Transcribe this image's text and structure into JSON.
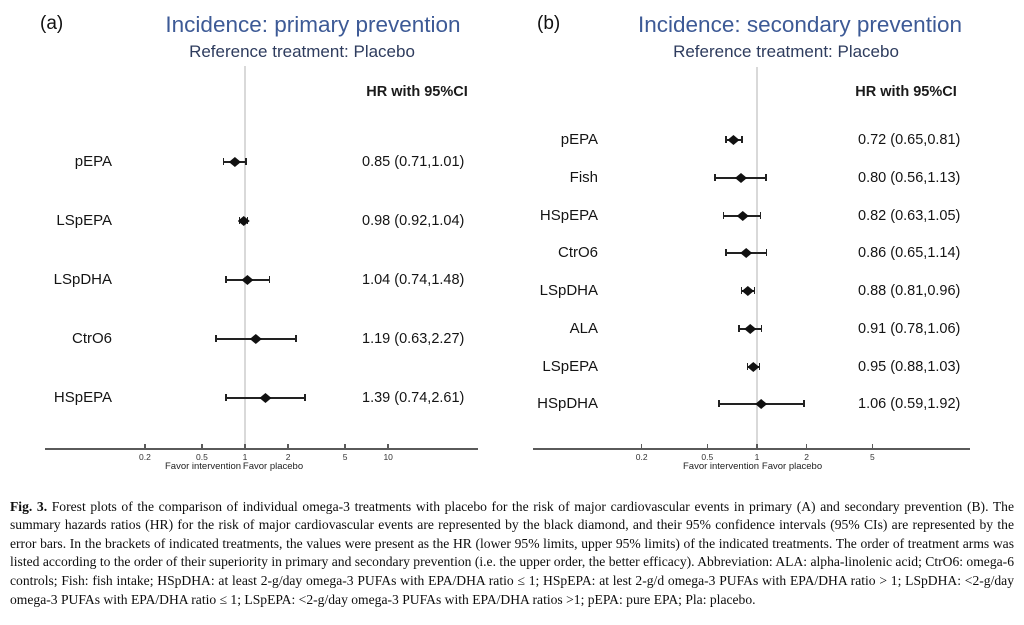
{
  "figure": {
    "caption_label": "Fig. 3.",
    "caption_text": "Forest plots of the comparison of individual omega-3 treatments with placebo for the risk of major cardiovascular events in primary (A) and secondary prevention (B). The summary hazards ratios (HR) for the risk of major cardiovascular events are represented by the black diamond, and their 95% confidence intervals (95% CIs) are represented by the error bars. In the brackets of indicated treatments, the values were present as the HR (lower 95% limits, upper 95% limits) of the indicated treatments. The order of treatment arms was listed according to the order of their superiority in primary and secondary prevention (i.e. the upper order, the better efficacy). Abbreviation: ALA: alpha-linolenic acid; CtrO6: omega-6 controls; Fish: fish intake; HSpDHA: at least 2-g/day omega-3 PUFAs with EPA/DHA ratio ≤ 1; HSpEPA: at lest 2-g/d omega-3 PUFAs with EPA/DHA ratio > 1; LSpDHA: <2-g/day omega-3 PUFAs with EPA/DHA ratio ≤ 1; LSpEPA: <2-g/day omega-3 PUFAs with EPA/DHA ratios >1; pEPA: pure EPA; Pla: placebo.",
    "panels": [
      {
        "id": "a",
        "label": "(a)",
        "title": "Incidence: primary prevention",
        "subtitle": "Reference treatment: Placebo",
        "hr_header": "HR with 95%CI",
        "favor_left": "Favor intervention",
        "favor_right": "Favor placebo",
        "ticks": [
          {
            "label": "0.2",
            "value": 0.2
          },
          {
            "label": "0.5",
            "value": 0.5
          },
          {
            "label": "1",
            "value": 1
          },
          {
            "label": "2",
            "value": 2
          },
          {
            "label": "5",
            "value": 5
          },
          {
            "label": "10",
            "value": 10
          }
        ],
        "rows": [
          {
            "treatment": "pEPA",
            "value": "0.85 (0.71,1.01)"
          },
          {
            "treatment": "LSpEPA",
            "value": "0.98 (0.92,1.04)"
          },
          {
            "treatment": "LSpDHA",
            "value": "1.04 (0.74,1.48)"
          },
          {
            "treatment": "CtrO6",
            "value": "1.19 (0.63,2.27)"
          },
          {
            "treatment": "HSpEPA",
            "value": "1.39 (0.74,2.61)"
          }
        ]
      },
      {
        "id": "b",
        "label": "(b)",
        "title": "Incidence: secondary prevention",
        "subtitle": "Reference treatment: Placebo",
        "hr_header": "HR with 95%CI",
        "favor_left": "Favor intervention",
        "favor_right": "Favor placebo",
        "ticks": [
          {
            "label": "0.2",
            "value": 0.2
          },
          {
            "label": "0.5",
            "value": 0.5
          },
          {
            "label": "1",
            "value": 1
          },
          {
            "label": "2",
            "value": 2
          },
          {
            "label": "5",
            "value": 5
          }
        ],
        "rows": [
          {
            "treatment": "pEPA",
            "value": "0.72 (0.65,0.81)"
          },
          {
            "treatment": "Fish",
            "value": "0.80 (0.56,1.13)"
          },
          {
            "treatment": "HSpEPA",
            "value": "0.82 (0.63,1.05)"
          },
          {
            "treatment": "CtrO6",
            "value": "0.86 (0.65,1.14)"
          },
          {
            "treatment": "LSpDHA",
            "value": "0.88 (0.81,0.96)"
          },
          {
            "treatment": "ALA",
            "value": "0.91 (0.78,1.06)"
          },
          {
            "treatment": "LSpEPA",
            "value": "0.95 (0.88,1.03)"
          },
          {
            "treatment": "HSpDHA",
            "value": "1.06 (0.59,1.92)"
          }
        ]
      }
    ]
  },
  "chart_data": [
    {
      "type": "scatter",
      "variant": "forest-plot",
      "title": "Incidence: primary prevention",
      "subtitle": "Reference treatment: Placebo",
      "value_header": "HR with 95%CI",
      "x_scale": "log",
      "x_ticks": [
        0.2,
        0.5,
        1,
        2,
        5,
        10
      ],
      "reference_line_x": 1,
      "xlabel_left_of_1": "Favor intervention",
      "xlabel_right_of_1": "Favor placebo",
      "categories": [
        "pEPA",
        "LSpEPA",
        "LSpDHA",
        "CtrO6",
        "HSpEPA"
      ],
      "hr": [
        0.85,
        0.98,
        1.04,
        1.19,
        1.39
      ],
      "ci_lower": [
        0.71,
        0.92,
        0.74,
        0.63,
        0.74
      ],
      "ci_upper": [
        1.01,
        1.04,
        1.48,
        2.27,
        2.61
      ]
    },
    {
      "type": "scatter",
      "variant": "forest-plot",
      "title": "Incidence: secondary prevention",
      "subtitle": "Reference treatment: Placebo",
      "value_header": "HR with 95%CI",
      "x_scale": "log",
      "x_ticks": [
        0.2,
        0.5,
        1,
        2,
        5
      ],
      "reference_line_x": 1,
      "xlabel_left_of_1": "Favor intervention",
      "xlabel_right_of_1": "Favor placebo",
      "categories": [
        "pEPA",
        "Fish",
        "HSpEPA",
        "CtrO6",
        "LSpDHA",
        "ALA",
        "LSpEPA",
        "HSpDHA"
      ],
      "hr": [
        0.72,
        0.8,
        0.82,
        0.86,
        0.88,
        0.91,
        0.95,
        1.06
      ],
      "ci_lower": [
        0.65,
        0.56,
        0.63,
        0.65,
        0.81,
        0.78,
        0.88,
        0.59
      ],
      "ci_upper": [
        0.81,
        1.13,
        1.05,
        1.14,
        0.96,
        1.06,
        1.03,
        1.92
      ]
    }
  ]
}
